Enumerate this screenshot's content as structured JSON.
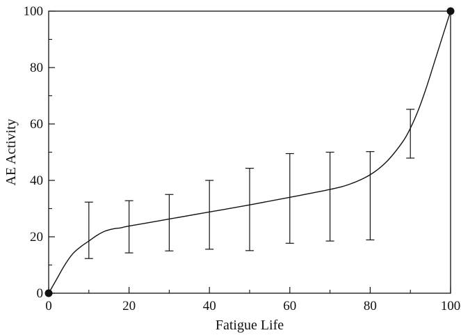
{
  "chart_data": {
    "type": "line",
    "title": "",
    "xlabel": "Fatigue Life",
    "ylabel": "AE Activity",
    "xlim": [
      0,
      100
    ],
    "ylim": [
      0,
      100
    ],
    "grid": false,
    "x_ticks": [
      0,
      20,
      40,
      60,
      80,
      100
    ],
    "y_ticks": [
      0,
      20,
      40,
      60,
      80,
      100
    ],
    "curve": {
      "x": [
        0,
        2,
        4,
        6,
        8,
        10,
        12,
        14,
        16,
        18,
        20,
        30,
        40,
        50,
        60,
        70,
        75,
        80,
        84,
        88,
        90,
        92,
        94,
        96,
        98,
        100
      ],
      "y": [
        0,
        5,
        10,
        14,
        16.5,
        18.5,
        20.5,
        22,
        22.8,
        23.2,
        23.8,
        26.3,
        28.8,
        31.3,
        34,
        36.8,
        38.7,
        42,
        46.5,
        53.5,
        58.5,
        65,
        73,
        82,
        91,
        100
      ]
    },
    "endpoints": [
      {
        "x": 0,
        "y": 0
      },
      {
        "x": 100,
        "y": 100
      }
    ],
    "error_bars": [
      {
        "x": 10,
        "low": 12.3,
        "high": 32.3
      },
      {
        "x": 20,
        "low": 14.3,
        "high": 32.8
      },
      {
        "x": 30,
        "low": 15,
        "high": 35
      },
      {
        "x": 40,
        "low": 15.6,
        "high": 40
      },
      {
        "x": 50,
        "low": 15.1,
        "high": 44.3
      },
      {
        "x": 60,
        "low": 17.7,
        "high": 49.5
      },
      {
        "x": 70,
        "low": 18.5,
        "high": 50
      },
      {
        "x": 80,
        "low": 18.9,
        "high": 50.2
      },
      {
        "x": 90,
        "low": 47.9,
        "high": 65.2
      }
    ]
  }
}
